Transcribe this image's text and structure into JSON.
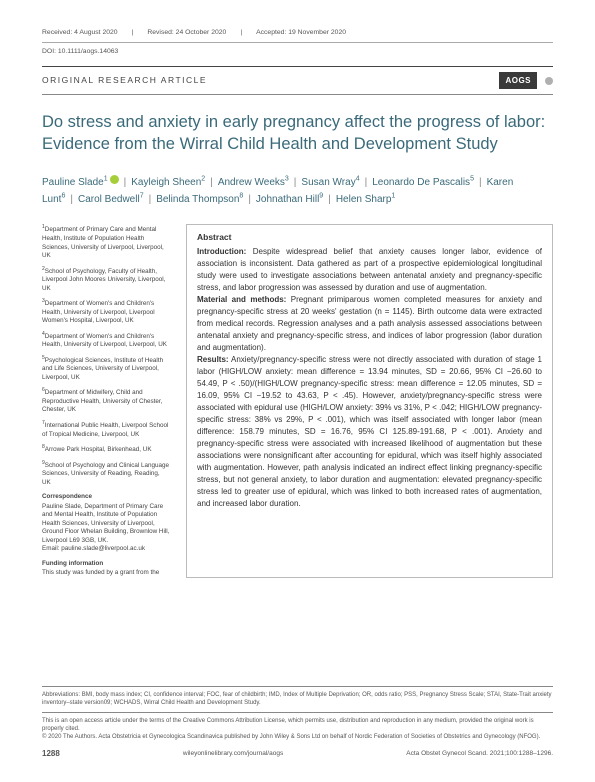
{
  "meta": {
    "received": "Received: 4 August 2020",
    "revised": "Revised: 24 October 2020",
    "accepted": "Accepted: 19 November 2020",
    "doi": "DOI: 10.1111/aogs.14063"
  },
  "articleType": "ORIGINAL RESEARCH ARTICLE",
  "journalBadge": "AOGS",
  "title": "Do stress and anxiety in early pregnancy affect the progress of labor: Evidence from the Wirral Child Health and Development Study",
  "authors": [
    {
      "name": "Pauline Slade",
      "sup": "1",
      "orcid": true
    },
    {
      "name": "Kayleigh Sheen",
      "sup": "2"
    },
    {
      "name": "Andrew Weeks",
      "sup": "3"
    },
    {
      "name": "Susan Wray",
      "sup": "4"
    },
    {
      "name": "Leonardo De Pascalis",
      "sup": "5"
    },
    {
      "name": "Karen Lunt",
      "sup": "6"
    },
    {
      "name": "Carol Bedwell",
      "sup": "7"
    },
    {
      "name": "Belinda Thompson",
      "sup": "8"
    },
    {
      "name": "Johnathan Hill",
      "sup": "9"
    },
    {
      "name": "Helen Sharp",
      "sup": "1"
    }
  ],
  "affiliations": [
    {
      "n": "1",
      "text": "Department of Primary Care and Mental Health, Institute of Population Health Sciences, University of Liverpool, Liverpool, UK"
    },
    {
      "n": "2",
      "text": "School of Psychology, Faculty of Health, Liverpool John Moores University, Liverpool, UK"
    },
    {
      "n": "3",
      "text": "Department of Women's and Children's Health, University of Liverpool, Liverpool Women's Hospital, Liverpool, UK"
    },
    {
      "n": "4",
      "text": "Department of Women's and Children's Health, University of Liverpool, Liverpool, UK"
    },
    {
      "n": "5",
      "text": "Psychological Sciences, Institute of Health and Life Sciences, University of Liverpool, Liverpool, UK"
    },
    {
      "n": "6",
      "text": "Department of Midwifery, Child and Reproductive Health, University of Chester, Chester, UK"
    },
    {
      "n": "7",
      "text": "International Public Health, Liverpool School of Tropical Medicine, Liverpool, UK"
    },
    {
      "n": "8",
      "text": "Arrowe Park Hospital, Birkenhead, UK"
    },
    {
      "n": "9",
      "text": "School of Psychology and Clinical Language Sciences, University of Reading, Reading, UK"
    }
  ],
  "correspondence": {
    "heading": "Correspondence",
    "text": "Pauline Slade, Department of Primary Care and Mental Health, Institute of Population Health Sciences, University of Liverpool, Ground Floor Whelan Building, Brownlow Hill, Liverpool L69 3GB, UK.",
    "email": "Email: pauline.slade@liverpool.ac.uk"
  },
  "funding": {
    "heading": "Funding information",
    "text": "This study was funded by a grant from the"
  },
  "abstract": {
    "heading": "Abstract",
    "intro_label": "Introduction:",
    "intro": " Despite widespread belief that anxiety causes longer labor, evidence of association is inconsistent. Data gathered as part of a prospective epidemiological longitudinal study were used to investigate associations between antenatal anxiety and pregnancy-specific stress, and labor progression was assessed by duration and use of augmentation.",
    "methods_label": "Material and methods:",
    "methods": " Pregnant primiparous women completed measures for anxiety and pregnancy-specific stress at 20 weeks' gestation (n = 1145). Birth outcome data were extracted from medical records. Regression analyses and a path analysis assessed associations between antenatal anxiety and pregnancy-specific stress, and indices of labor progression (labor duration and augmentation).",
    "results_label": "Results:",
    "results": " Anxiety/pregnancy-specific stress were not directly associated with duration of stage 1 labor (HIGH/LOW anxiety: mean difference = 13.94 minutes, SD = 20.66, 95% CI −26.60 to 54.49, P < .50)/(HIGH/LOW pregnancy-specific stress: mean difference = 12.05 minutes, SD = 16.09, 95% CI −19.52 to 43.63, P < .45). However, anxiety/pregnancy-specific stress were associated with epidural use (HIGH/LOW anxiety: 39% vs 31%, P < .042; HIGH/LOW pregnancy-specific stress: 38% vs 29%, P < .001), which was itself associated with longer labor (mean difference: 158.79 minutes, SD = 16.76, 95% CI 125.89-191.68, P < .001). Anxiety and pregnancy-specific stress were associated with increased likelihood of augmentation but these associations were nonsignificant after accounting for epidural, which was itself highly associated with augmentation. However, path analysis indicated an indirect effect linking pregnancy-specific stress, but not general anxiety, to labor duration and augmentation: elevated pregnancy-specific stress led to greater use of epidural, which was linked to both increased rates of augmentation, and increased labor duration."
  },
  "abbreviations": "Abbreviations: BMI, body mass index; CI, confidence interval; FOC, fear of childbirth; IMD, Index of Multiple Deprivation; OR, odds ratio; PSS, Pregnancy Stress Scale; STAI, State-Trait anxiety inventory–state version09; WCHADS, Wirral Child Health and Development Study.",
  "license1": "This is an open access article under the terms of the Creative Commons Attribution License, which permits use, distribution and reproduction in any medium, provided the original work is properly cited.",
  "license2": "© 2020 The Authors. Acta Obstetricia et Gynecologica Scandinavica published by John Wiley & Sons Ltd on behalf of Nordic Federation of Societies of Obstetrics and Gynecology (NFOG).",
  "footer": {
    "pagenum": "1288",
    "url": "wileyonlinelibrary.com/journal/aogs",
    "citation": "Acta Obstet Gynecol Scand. 2021;100:1288–1296."
  }
}
